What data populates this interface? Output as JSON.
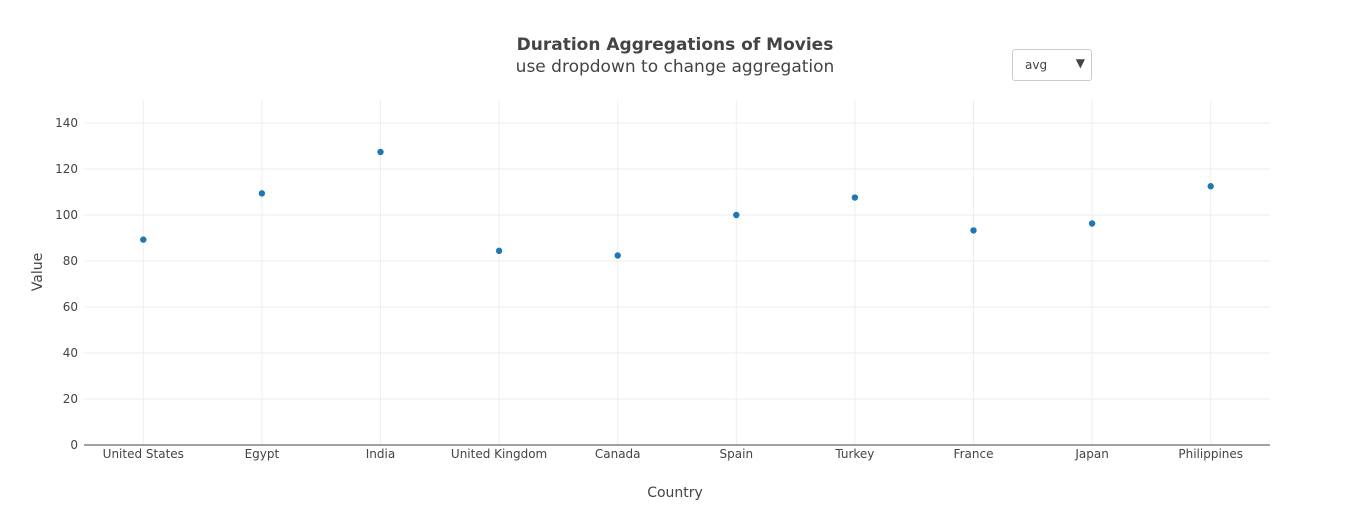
{
  "chart_data": {
    "type": "scatter",
    "title": "Duration Aggregations of Movies",
    "subtitle": "use dropdown to change aggregation",
    "xlabel": "Country",
    "ylabel": "Value",
    "categories": [
      "United States",
      "Egypt",
      "India",
      "United Kingdom",
      "Canada",
      "Spain",
      "Turkey",
      "France",
      "Japan",
      "Philippines"
    ],
    "values": [
      89.3,
      109.4,
      127.4,
      84.4,
      82.4,
      100.0,
      107.6,
      93.3,
      96.3,
      112.5
    ],
    "ylim": [
      0,
      150
    ],
    "yticks": [
      0,
      20,
      40,
      60,
      80,
      100,
      120,
      140
    ],
    "grid": true,
    "legend": "none",
    "marker_color": "#1f77b4"
  },
  "dropdown": {
    "selected": "avg",
    "arrow": "▼"
  }
}
